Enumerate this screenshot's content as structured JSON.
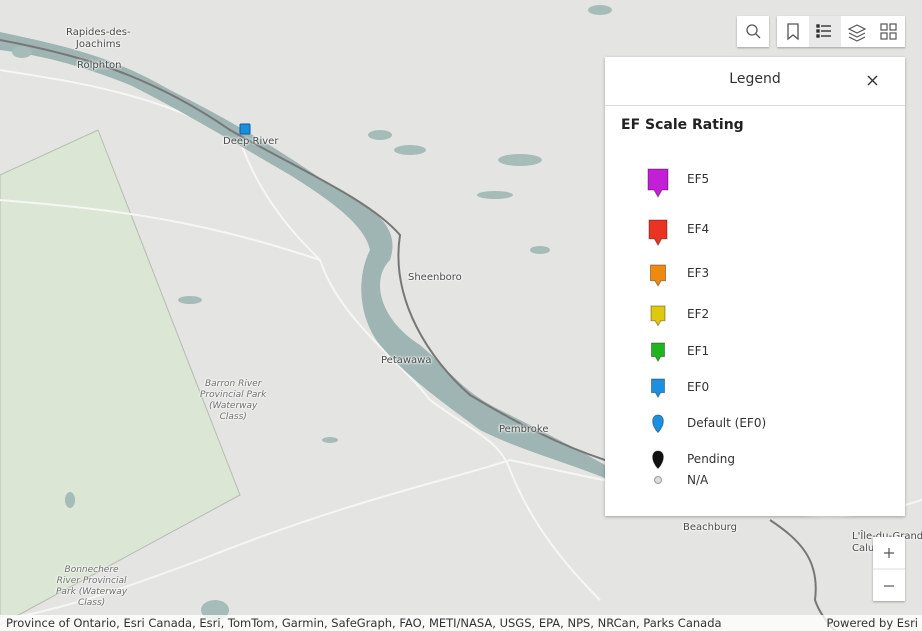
{
  "map": {
    "place_labels": [
      {
        "lines": [
          "Rapides-des-",
          "Joachims"
        ]
      },
      {
        "lines": [
          "Rolphton"
        ]
      },
      {
        "lines": [
          "Deep River"
        ]
      },
      {
        "lines": [
          "Sheenboro"
        ]
      },
      {
        "lines": [
          "Petawawa"
        ]
      },
      {
        "lines": [
          "Barron River",
          "Provincial Park",
          "(Waterway",
          "Class)"
        ]
      },
      {
        "lines": [
          "Pembroke"
        ]
      },
      {
        "lines": [
          "Beachburg"
        ]
      },
      {
        "lines": [
          "Bonnechere",
          "River Provincial",
          "Park (Waterway",
          "Class)"
        ]
      },
      {
        "lines": [
          "L'Île-du-Grand-",
          "Calumet"
        ]
      }
    ]
  },
  "legend": {
    "title": "Legend",
    "layer_title": "EF Scale Rating",
    "items": [
      "EF5",
      "EF4",
      "EF3",
      "EF2",
      "EF1",
      "EF0",
      "Default (EF0)",
      "Pending",
      "N/A"
    ]
  },
  "attribution": "Province of Ontario, Esri Canada, Esri, TomTom, Garmin, SafeGraph, FAO, METI/NASA, USGS, EPA, NPS, NRCan, Parks Canada",
  "powered_by": "Powered by Esri"
}
